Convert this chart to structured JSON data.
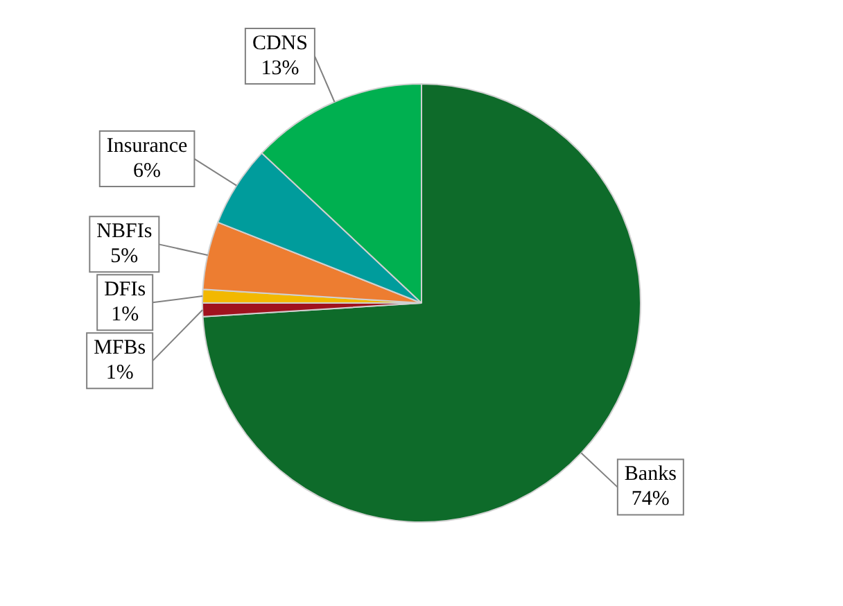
{
  "chart_data": {
    "type": "pie",
    "categories": [
      "Banks",
      "MFBs",
      "DFIs",
      "NBFIs",
      "Insurance",
      "CDNS"
    ],
    "values": [
      74,
      1,
      1,
      5,
      6,
      13
    ],
    "value_labels": [
      "74%",
      "1%",
      "1%",
      "5%",
      "6%",
      "13%"
    ],
    "colors": [
      "#0e6b2a",
      "#a0121e",
      "#f2b800",
      "#ed7d31",
      "#009c9c",
      "#00b050"
    ],
    "legend": false
  }
}
